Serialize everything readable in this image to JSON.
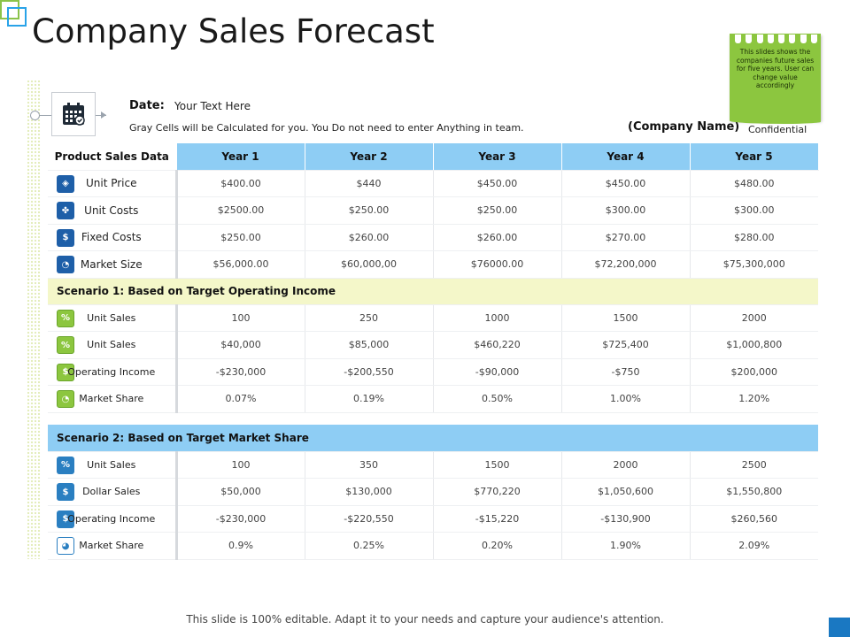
{
  "title": "Company Sales Forecast",
  "date_label": "Date:",
  "date_value": "Your Text Here",
  "gray_note": "Gray Cells will be Calculated for you. You Do not need to enter Anything in team.",
  "company_name": "(Company Name)",
  "confidential": "Confidential",
  "sticky_note": "This slides shows the companies future sales for five years. User can change value accordingly",
  "footer": "This slide is 100% editable. Adapt it to your needs and capture your audience's attention.",
  "colors": {
    "header_blue": "#8ecdf4",
    "scenario1_bg": "#f4f7c9",
    "note_green": "#8cc63f",
    "accent_blue": "#1a78c2"
  },
  "table": {
    "headers": [
      "Product Sales Data",
      "Year 1",
      "Year 2",
      "Year 3",
      "Year 4",
      "Year 5"
    ],
    "product_rows": [
      {
        "icon": "tag-icon",
        "label": "Unit Price",
        "values": [
          "$400.00",
          "$440",
          "$450.00",
          "$450.00",
          "$480.00"
        ]
      },
      {
        "icon": "handshake-icon",
        "label": "Unit Costs",
        "values": [
          "$2500.00",
          "$250.00",
          "$250.00",
          "$300.00",
          "$300.00"
        ]
      },
      {
        "icon": "money-bag-icon",
        "label": "Fixed Costs",
        "values": [
          "$250.00",
          "$260.00",
          "$260.00",
          "$270.00",
          "$280.00"
        ]
      },
      {
        "icon": "pie-chart-icon",
        "label": "Market Size",
        "values": [
          "$56,000.00",
          "$60,000,00",
          "$76000.00",
          "$72,200,000",
          "$75,300,000"
        ]
      }
    ],
    "scenario1": {
      "title": "Scenario 1: Based on Target Operating Income",
      "rows": [
        {
          "icon": "percent-icon",
          "label": "Unit Sales",
          "values": [
            "100",
            "250",
            "1000",
            "1500",
            "2000"
          ]
        },
        {
          "icon": "percent-icon",
          "label": "Unit Sales",
          "values": [
            "$40,000",
            "$85,000",
            "$460,220",
            "$725,400",
            "$1,000,800"
          ]
        },
        {
          "icon": "money-bag-icon",
          "label": "Operating Income",
          "values": [
            "-$230,000",
            "-$200,550",
            "-$90,000",
            "-$750",
            "$200,000"
          ]
        },
        {
          "icon": "pie-chart-icon",
          "label": "Market Share",
          "values": [
            "0.07%",
            "0.19%",
            "0.50%",
            "1.00%",
            "1.20%"
          ]
        }
      ]
    },
    "scenario2": {
      "title": "Scenario 2: Based on Target Market Share",
      "rows": [
        {
          "icon": "percent-icon",
          "label": "Unit Sales",
          "values": [
            "100",
            "350",
            "1500",
            "2000",
            "2500"
          ]
        },
        {
          "icon": "dollar-icon",
          "label": "Dollar Sales",
          "values": [
            "$50,000",
            "$130,000",
            "$770,220",
            "$1,050,600",
            "$1,550,800"
          ]
        },
        {
          "icon": "money-bag-icon",
          "label": "Operating Income",
          "values": [
            "-$230,000",
            "-$220,550",
            "-$15,220",
            "-$130,900",
            "$260,560"
          ]
        },
        {
          "icon": "pie-chart-icon",
          "label": "Market Share",
          "values": [
            "0.9%",
            "0.25%",
            "0.20%",
            "1.90%",
            "2.09%"
          ]
        }
      ]
    }
  }
}
